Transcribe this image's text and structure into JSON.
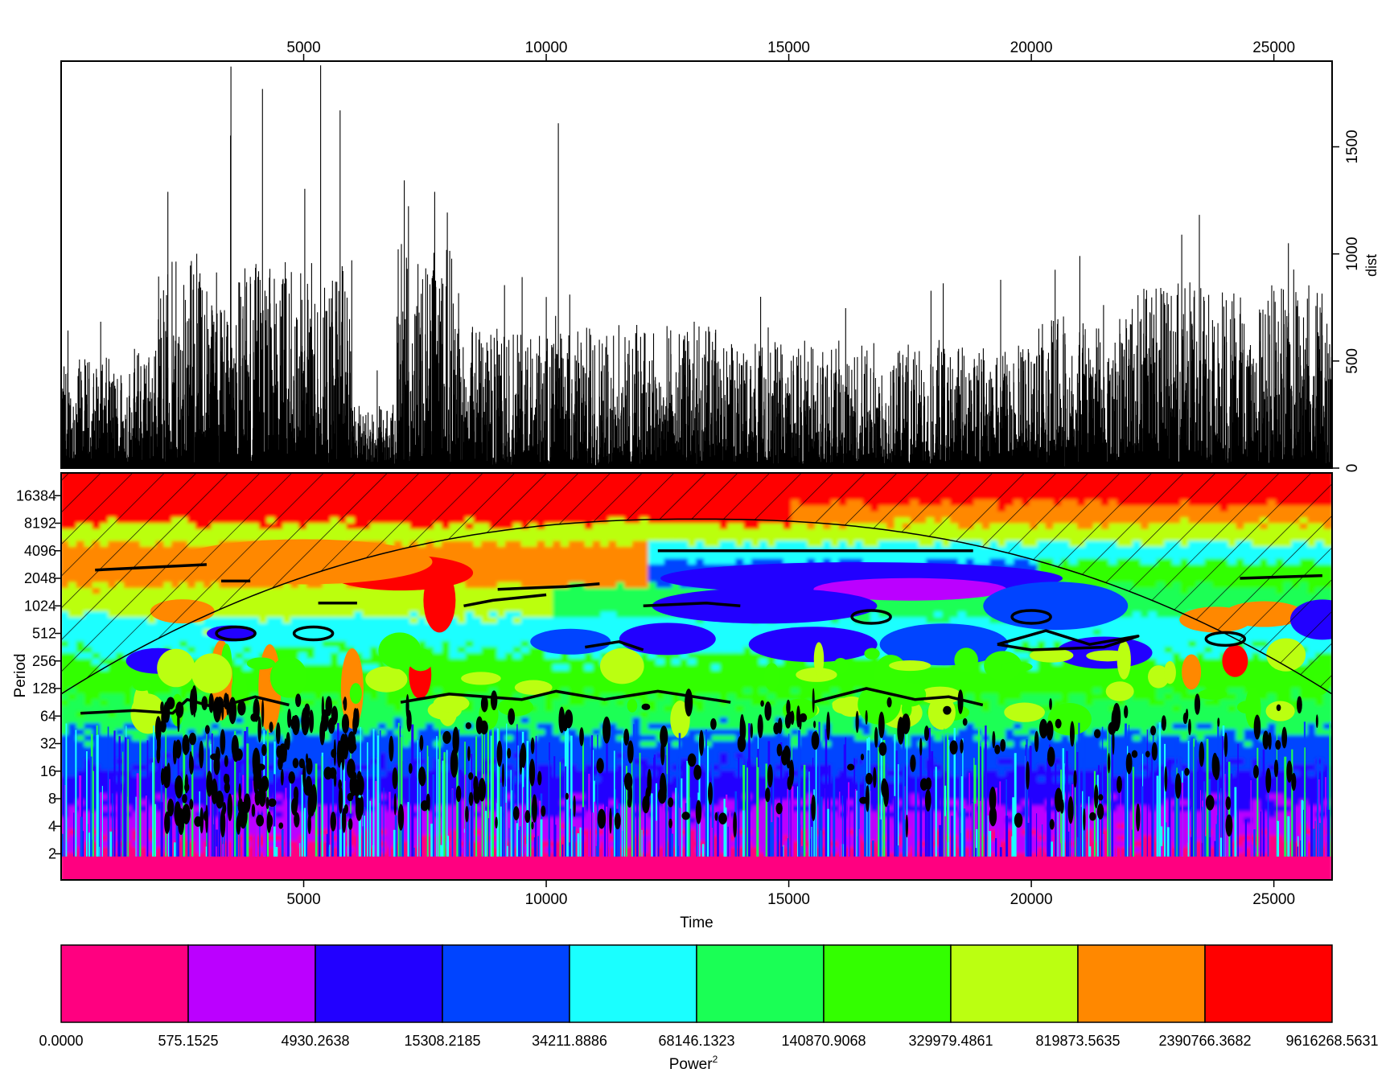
{
  "chart_data": [
    {
      "type": "line",
      "name_of_panel": "time-series",
      "ylabel": "dist",
      "xlim": [
        0,
        26200
      ],
      "ylim": [
        0,
        1900
      ],
      "x_ticks": [
        "5000",
        "10000",
        "15000",
        "20000",
        "25000"
      ],
      "y_ticks": [
        "0",
        "500",
        "1000",
        "1500"
      ],
      "notable_peaks": [
        {
          "x": 3500,
          "y": 1875
        },
        {
          "x": 4150,
          "y": 1770
        },
        {
          "x": 5350,
          "y": 1880
        },
        {
          "x": 5750,
          "y": 1670
        },
        {
          "x": 10250,
          "y": 1610
        },
        {
          "x": 2200,
          "y": 1290
        },
        {
          "x": 7700,
          "y": 1290
        },
        {
          "x": 21000,
          "y": 990
        },
        {
          "x": 23100,
          "y": 1090
        },
        {
          "x": 25300,
          "y": 1050
        }
      ]
    },
    {
      "type": "heatmap",
      "name_of_panel": "wavelet-power",
      "xlabel": "Time",
      "ylabel": "Period",
      "xlim": [
        0,
        26200
      ],
      "period_scale": "log2",
      "x_ticks": [
        "5000",
        "10000",
        "15000",
        "20000",
        "25000"
      ],
      "y_ticks": [
        "2",
        "4",
        "8",
        "16",
        "32",
        "64",
        "128",
        "256",
        "512",
        "1024",
        "2048",
        "4096",
        "8192",
        "16384"
      ]
    },
    {
      "type": "legend",
      "name_of_panel": "power-colorbar",
      "label": "Power",
      "label_superscript": "2",
      "breaks": [
        "0.0000",
        "575.1525",
        "4930.2638",
        "15308.2185",
        "34211.8886",
        "68146.1323",
        "140870.9068",
        "329979.4861",
        "819873.5635",
        "2390766.3682",
        "9616268.5631"
      ],
      "colors": [
        "#ff0080",
        "#bb00ff",
        "#2200ff",
        "#0044ff",
        "#1affff",
        "#1aff55",
        "#33ff00",
        "#bbff11",
        "#ff8800",
        "#ff0000"
      ]
    }
  ]
}
